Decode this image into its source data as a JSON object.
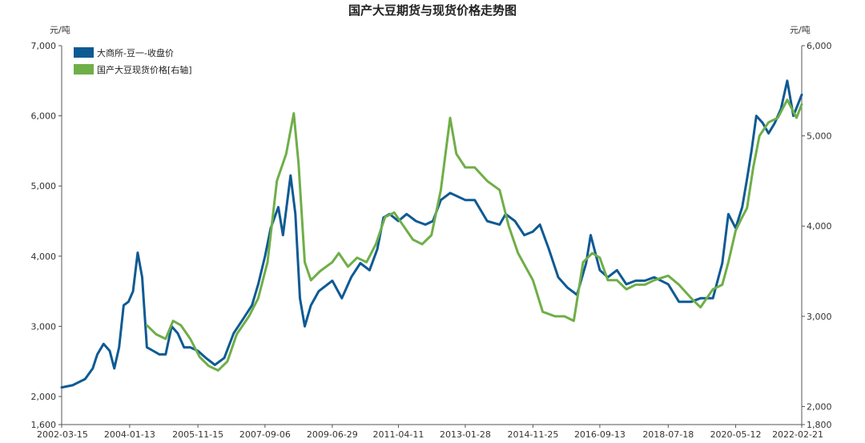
{
  "chart_data": {
    "type": "line",
    "title": "国产大豆期货与现货价格走势图",
    "left_axis": {
      "unit": "元/吨",
      "ylim": [
        1600,
        7000
      ],
      "ticks": [
        1600,
        2000,
        3000,
        4000,
        5000,
        6000,
        7000
      ],
      "tick_labels": [
        "1,600",
        "2,000",
        "3,000",
        "4,000",
        "5,000",
        "6,000",
        "7,000"
      ]
    },
    "right_axis": {
      "unit": "元/吨",
      "ylim": [
        1800,
        6000
      ],
      "ticks": [
        1800,
        2000,
        3000,
        4000,
        5000,
        6000
      ],
      "tick_labels": [
        "1,800",
        "2,000",
        "3,000",
        "4,000",
        "5,000",
        "6,000"
      ]
    },
    "x_axis": {
      "range": [
        "2002-03-15",
        "2022-02-21"
      ],
      "tick_labels": [
        "2002-03-15",
        "2004-01-13",
        "2005-11-15",
        "2007-09-06",
        "2009-06-29",
        "2011-04-11",
        "2013-01-28",
        "2014-11-25",
        "2016-09-13",
        "2018-07-18",
        "2020-05-12",
        "2022-02-21"
      ]
    },
    "grid": false,
    "legend_position": "top-left",
    "series": [
      {
        "name": "大商所-豆一-收盘价",
        "axis": "left",
        "color": "#0e5a94",
        "points": [
          [
            "2002-03-15",
            2130
          ],
          [
            "2002-07-01",
            2160
          ],
          [
            "2002-11-01",
            2250
          ],
          [
            "2003-01-15",
            2400
          ],
          [
            "2003-03-01",
            2600
          ],
          [
            "2003-05-01",
            2750
          ],
          [
            "2003-07-01",
            2650
          ],
          [
            "2003-08-15",
            2400
          ],
          [
            "2003-10-01",
            2700
          ],
          [
            "2003-11-15",
            3300
          ],
          [
            "2004-01-01",
            3350
          ],
          [
            "2004-02-15",
            3500
          ],
          [
            "2004-04-01",
            4050
          ],
          [
            "2004-05-15",
            3700
          ],
          [
            "2004-07-01",
            2700
          ],
          [
            "2004-09-01",
            2650
          ],
          [
            "2004-11-01",
            2600
          ],
          [
            "2005-01-01",
            2600
          ],
          [
            "2005-03-01",
            3000
          ],
          [
            "2005-05-01",
            2900
          ],
          [
            "2005-07-01",
            2700
          ],
          [
            "2005-09-01",
            2700
          ],
          [
            "2005-11-15",
            2650
          ],
          [
            "2006-02-01",
            2550
          ],
          [
            "2006-05-01",
            2450
          ],
          [
            "2006-08-01",
            2550
          ],
          [
            "2006-11-01",
            2900
          ],
          [
            "2007-02-01",
            3100
          ],
          [
            "2007-05-01",
            3300
          ],
          [
            "2007-07-01",
            3600
          ],
          [
            "2007-09-06",
            4000
          ],
          [
            "2007-11-01",
            4400
          ],
          [
            "2008-01-15",
            4700
          ],
          [
            "2008-03-01",
            4300
          ],
          [
            "2008-05-15",
            5150
          ],
          [
            "2008-07-01",
            4600
          ],
          [
            "2008-08-15",
            3400
          ],
          [
            "2008-10-01",
            3000
          ],
          [
            "2008-12-01",
            3300
          ],
          [
            "2009-02-15",
            3500
          ],
          [
            "2009-06-29",
            3650
          ],
          [
            "2009-10-01",
            3400
          ],
          [
            "2010-01-01",
            3700
          ],
          [
            "2010-04-01",
            3900
          ],
          [
            "2010-07-01",
            3800
          ],
          [
            "2010-09-15",
            4100
          ],
          [
            "2010-11-15",
            4550
          ],
          [
            "2011-01-15",
            4600
          ],
          [
            "2011-04-11",
            4500
          ],
          [
            "2011-07-01",
            4600
          ],
          [
            "2011-10-01",
            4500
          ],
          [
            "2012-01-01",
            4450
          ],
          [
            "2012-03-15",
            4500
          ],
          [
            "2012-06-01",
            4800
          ],
          [
            "2012-09-01",
            4900
          ],
          [
            "2013-01-28",
            4800
          ],
          [
            "2013-05-01",
            4800
          ],
          [
            "2013-09-01",
            4500
          ],
          [
            "2014-01-01",
            4450
          ],
          [
            "2014-03-01",
            4600
          ],
          [
            "2014-06-01",
            4500
          ],
          [
            "2014-09-01",
            4300
          ],
          [
            "2014-11-25",
            4350
          ],
          [
            "2015-02-01",
            4450
          ],
          [
            "2015-05-01",
            4100
          ],
          [
            "2015-08-01",
            3700
          ],
          [
            "2015-11-01",
            3550
          ],
          [
            "2016-02-01",
            3450
          ],
          [
            "2016-05-01",
            3900
          ],
          [
            "2016-06-15",
            4300
          ],
          [
            "2016-09-13",
            3800
          ],
          [
            "2016-12-01",
            3700
          ],
          [
            "2017-03-01",
            3800
          ],
          [
            "2017-06-01",
            3600
          ],
          [
            "2017-09-01",
            3650
          ],
          [
            "2017-12-01",
            3650
          ],
          [
            "2018-03-01",
            3700
          ],
          [
            "2018-07-18",
            3600
          ],
          [
            "2018-11-01",
            3350
          ],
          [
            "2019-03-01",
            3350
          ],
          [
            "2019-06-01",
            3400
          ],
          [
            "2019-10-01",
            3400
          ],
          [
            "2020-01-01",
            3900
          ],
          [
            "2020-03-01",
            4600
          ],
          [
            "2020-05-12",
            4400
          ],
          [
            "2020-07-15",
            4700
          ],
          [
            "2020-09-01",
            5100
          ],
          [
            "2020-10-15",
            5500
          ],
          [
            "2020-12-01",
            6000
          ],
          [
            "2021-02-01",
            5900
          ],
          [
            "2021-04-01",
            5750
          ],
          [
            "2021-06-01",
            5900
          ],
          [
            "2021-08-01",
            6100
          ],
          [
            "2021-10-01",
            6500
          ],
          [
            "2021-12-01",
            6000
          ],
          [
            "2022-02-21",
            6300
          ]
        ]
      },
      {
        "name": "国产大豆现货价格[右轴]",
        "axis": "right",
        "color": "#6fae48",
        "points": [
          [
            "2004-07-01",
            2900
          ],
          [
            "2004-10-01",
            2800
          ],
          [
            "2005-01-01",
            2750
          ],
          [
            "2005-03-15",
            2950
          ],
          [
            "2005-06-01",
            2900
          ],
          [
            "2005-09-01",
            2750
          ],
          [
            "2005-12-01",
            2550
          ],
          [
            "2006-03-01",
            2450
          ],
          [
            "2006-06-01",
            2400
          ],
          [
            "2006-09-01",
            2500
          ],
          [
            "2006-12-01",
            2800
          ],
          [
            "2007-04-01",
            3000
          ],
          [
            "2007-07-01",
            3200
          ],
          [
            "2007-10-01",
            3600
          ],
          [
            "2008-01-01",
            4500
          ],
          [
            "2008-04-01",
            4800
          ],
          [
            "2008-06-15",
            5250
          ],
          [
            "2008-08-01",
            4700
          ],
          [
            "2008-10-01",
            3600
          ],
          [
            "2008-12-01",
            3400
          ],
          [
            "2009-03-01",
            3500
          ],
          [
            "2009-06-29",
            3600
          ],
          [
            "2009-09-01",
            3700
          ],
          [
            "2009-12-01",
            3550
          ],
          [
            "2010-03-01",
            3650
          ],
          [
            "2010-06-01",
            3600
          ],
          [
            "2010-09-01",
            3800
          ],
          [
            "2010-12-01",
            4100
          ],
          [
            "2011-03-01",
            4150
          ],
          [
            "2011-06-01",
            4000
          ],
          [
            "2011-09-01",
            3850
          ],
          [
            "2011-12-01",
            3800
          ],
          [
            "2012-03-01",
            3900
          ],
          [
            "2012-06-01",
            4400
          ],
          [
            "2012-09-01",
            5200
          ],
          [
            "2012-11-01",
            4800
          ],
          [
            "2013-01-28",
            4650
          ],
          [
            "2013-05-01",
            4650
          ],
          [
            "2013-09-01",
            4500
          ],
          [
            "2014-01-01",
            4400
          ],
          [
            "2014-04-01",
            4000
          ],
          [
            "2014-07-01",
            3700
          ],
          [
            "2014-11-25",
            3400
          ],
          [
            "2015-03-01",
            3050
          ],
          [
            "2015-07-01",
            3000
          ],
          [
            "2015-10-01",
            3000
          ],
          [
            "2016-01-01",
            2950
          ],
          [
            "2016-04-01",
            3600
          ],
          [
            "2016-07-01",
            3700
          ],
          [
            "2016-09-13",
            3650
          ],
          [
            "2016-12-01",
            3400
          ],
          [
            "2017-03-01",
            3400
          ],
          [
            "2017-06-01",
            3300
          ],
          [
            "2017-09-01",
            3350
          ],
          [
            "2017-12-01",
            3350
          ],
          [
            "2018-03-01",
            3400
          ],
          [
            "2018-07-18",
            3450
          ],
          [
            "2018-11-01",
            3350
          ],
          [
            "2019-03-01",
            3200
          ],
          [
            "2019-06-01",
            3100
          ],
          [
            "2019-10-01",
            3300
          ],
          [
            "2020-01-01",
            3350
          ],
          [
            "2020-03-01",
            3600
          ],
          [
            "2020-05-12",
            3950
          ],
          [
            "2020-07-15",
            4100
          ],
          [
            "2020-09-01",
            4200
          ],
          [
            "2020-11-01",
            4650
          ],
          [
            "2021-01-01",
            5000
          ],
          [
            "2021-04-01",
            5150
          ],
          [
            "2021-07-01",
            5200
          ],
          [
            "2021-10-01",
            5400
          ],
          [
            "2022-01-01",
            5200
          ],
          [
            "2022-02-21",
            5350
          ]
        ]
      }
    ]
  }
}
